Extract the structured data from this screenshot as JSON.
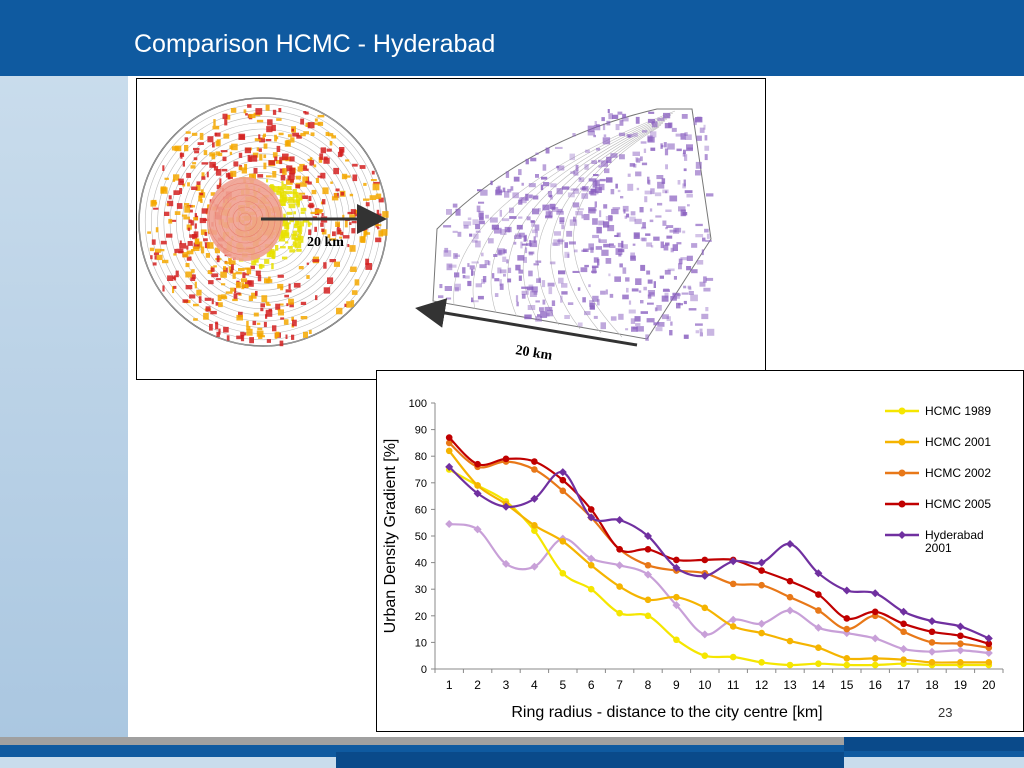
{
  "slide": {
    "title": "Comparison HCMC - Hyderabad",
    "page_number": "23"
  },
  "maps": {
    "left_scale_label": "20 km",
    "right_scale_label": "20 km",
    "left_colors": [
      "#f5a800",
      "#e8e000",
      "#d42020",
      "#f0a090"
    ],
    "right_color": "#8a60c0"
  },
  "chart_data": {
    "type": "line",
    "xlabel": "Ring radius - distance to the city centre [km]",
    "ylabel": "Urban Density Gradient [%]",
    "ylim": [
      0,
      100
    ],
    "yticks": [
      0,
      10,
      20,
      30,
      40,
      50,
      60,
      70,
      80,
      90,
      100
    ],
    "categories": [
      "1",
      "2",
      "3",
      "4",
      "5",
      "6",
      "7",
      "8",
      "9",
      "10",
      "11",
      "12",
      "13",
      "14",
      "15",
      "16",
      "17",
      "18",
      "19",
      "20"
    ],
    "legend_position": "top-right",
    "grid": false,
    "series": [
      {
        "name": "HCMC 1989",
        "color": "#f5e600",
        "marker": "circle",
        "values": [
          75,
          69,
          63,
          52,
          36,
          30,
          21,
          20,
          11,
          5,
          4.5,
          2.5,
          1.5,
          2,
          1.5,
          1.5,
          2,
          1.5,
          1.5,
          1.5
        ]
      },
      {
        "name": "HCMC 2001",
        "color": "#f5b400",
        "marker": "circle",
        "values": [
          82,
          69,
          62,
          54,
          48,
          39,
          31,
          26,
          27,
          23,
          16,
          13.5,
          10.5,
          8,
          4,
          4,
          3.5,
          2.5,
          2.5,
          2.5
        ]
      },
      {
        "name": "HCMC 2002",
        "color": "#e87818",
        "marker": "circle",
        "values": [
          85,
          76,
          78,
          75,
          67,
          57,
          45,
          39,
          37,
          36,
          32,
          31.5,
          27,
          22,
          15,
          20,
          14,
          10,
          9.5,
          8
        ]
      },
      {
        "name": "HCMC 2005",
        "color": "#c00000",
        "marker": "circle",
        "values": [
          87,
          77,
          79,
          78,
          71,
          60,
          45,
          45,
          41,
          41,
          41,
          37,
          33,
          28,
          19,
          21.5,
          17,
          14,
          12.5,
          9.5
        ]
      },
      {
        "name": "Hyderabad 2001",
        "name_lines": [
          "Hyderabad",
          "2001"
        ],
        "color": "#7030a0",
        "marker": "diamond",
        "values": [
          76,
          66,
          61,
          64,
          74,
          57,
          56,
          50,
          38,
          35,
          40.5,
          40,
          47,
          36,
          29.5,
          28.5,
          21.5,
          18,
          16,
          11.5
        ]
      },
      {
        "name": "Hyderabad 2001 (unlabeled)",
        "color": "#c8a0d8",
        "marker": "diamond",
        "legend": false,
        "values": [
          54.5,
          52.5,
          39.5,
          38.5,
          49,
          41.5,
          39,
          35.5,
          24,
          13,
          18.5,
          17,
          22,
          15.5,
          13.5,
          11.5,
          7.5,
          6.5,
          7,
          6
        ]
      }
    ]
  }
}
